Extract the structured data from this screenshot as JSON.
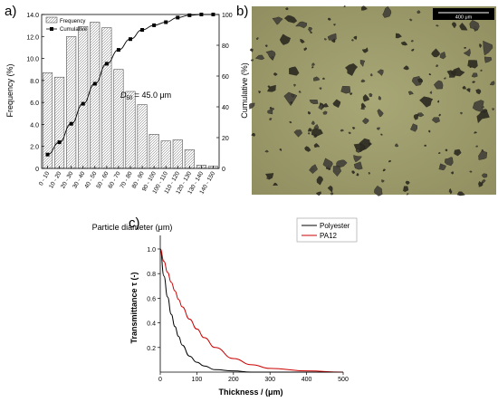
{
  "panels": {
    "a": {
      "label": "a)"
    },
    "b": {
      "label": "b)",
      "scalebar_text": "400 μm"
    },
    "c": {
      "label": "c)"
    }
  },
  "chart_data": [
    {
      "type": "bar",
      "panel": "a",
      "categories": [
        "0 - 10",
        "10 - 20",
        "20 - 30",
        "30 - 40",
        "40 - 50",
        "50 - 60",
        "60 - 70",
        "70 - 80",
        "80 - 90",
        "90 - 100",
        "100 - 110",
        "110 - 120",
        "120 - 130",
        "130 - 140",
        "140 - 150"
      ],
      "series": [
        {
          "name": "Frequency",
          "axis": "left",
          "kind": "bar",
          "values": [
            8.7,
            8.3,
            12.0,
            12.9,
            13.3,
            12.8,
            9.0,
            7.0,
            5.8,
            3.1,
            2.5,
            2.6,
            1.7,
            0.3,
            0.2
          ]
        },
        {
          "name": "Cumulative",
          "axis": "right",
          "kind": "line",
          "values": [
            9,
            17,
            29,
            42,
            55,
            68,
            77,
            84,
            90,
            93,
            95,
            98,
            99.5,
            100,
            100
          ]
        }
      ],
      "xlabel": "Particle diameter (μm)",
      "ylabel": "Frequency (%)",
      "ylabel_right": "Cumulative (%)",
      "ylim": [
        0,
        14
      ],
      "ylim_right": [
        0,
        100
      ],
      "yticks": [
        "0",
        "2.0",
        "4.0",
        "6.0",
        "8.0",
        "10.0",
        "12.0",
        "14.0"
      ],
      "yticks_right": [
        "0",
        "20",
        "40",
        "60",
        "80",
        "100"
      ],
      "annotation": {
        "prefix": "D",
        "subscript": "50",
        "text": " = 45.0 μm"
      },
      "legend_position": "top-left",
      "grid": false
    },
    {
      "type": "line",
      "panel": "c",
      "x": [
        0,
        10,
        20,
        30,
        40,
        50,
        60,
        80,
        100,
        120,
        150,
        200,
        250,
        300,
        400,
        500
      ],
      "series": [
        {
          "name": "Polyester",
          "color": "#000000",
          "values": [
            1.0,
            0.78,
            0.61,
            0.47,
            0.37,
            0.29,
            0.22,
            0.13,
            0.08,
            0.05,
            0.02,
            0.01,
            0.0,
            0.0,
            0.0,
            0.0
          ]
        },
        {
          "name": "PA12",
          "color": "#cc0000",
          "values": [
            1.0,
            0.9,
            0.81,
            0.73,
            0.66,
            0.59,
            0.53,
            0.43,
            0.35,
            0.28,
            0.2,
            0.11,
            0.06,
            0.03,
            0.01,
            0.0
          ]
        }
      ],
      "xlabel": "Thickness /  (μm)",
      "ylabel": "Transmittance τ (-)",
      "xlim": [
        0,
        500
      ],
      "ylim": [
        0,
        1.0
      ],
      "xticks": [
        "0",
        "100",
        "200",
        "300",
        "400",
        "500"
      ],
      "yticks": [
        "0.2",
        "0.4",
        "0.6",
        "0.8",
        "1.0"
      ],
      "legend_position": "top-right",
      "grid": false
    }
  ]
}
